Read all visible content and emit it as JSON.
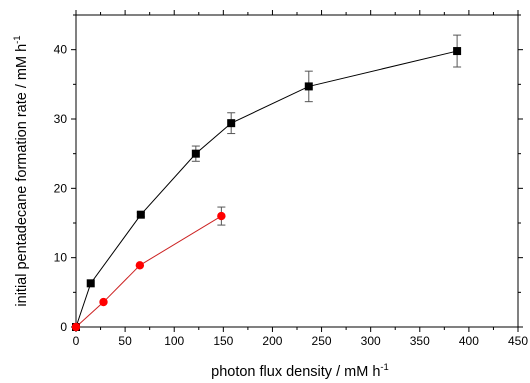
{
  "chart_data": {
    "type": "scatter",
    "xlabel": "photon flux density / mM h",
    "xlabel_sup": "-1",
    "ylabel": "initial pentadecane formation rate / mM h",
    "ylabel_sup": "-1",
    "xlim": [
      0,
      450
    ],
    "ylim": [
      0,
      45
    ],
    "xticks": [
      0,
      50,
      100,
      150,
      200,
      250,
      300,
      350,
      400,
      450
    ],
    "yticks": [
      0,
      10,
      20,
      30,
      40
    ],
    "grid": false,
    "series": [
      {
        "marker": "square",
        "color": "#000000",
        "points": [
          {
            "x": 0,
            "y": 0,
            "err": 0
          },
          {
            "x": 15,
            "y": 6.3,
            "err": 0
          },
          {
            "x": 66,
            "y": 16.2,
            "err": 0.3
          },
          {
            "x": 122,
            "y": 25.0,
            "err": 1.1
          },
          {
            "x": 158,
            "y": 29.4,
            "err": 1.5
          },
          {
            "x": 237,
            "y": 34.7,
            "err": 2.2
          },
          {
            "x": 388,
            "y": 39.8,
            "err": 2.3
          }
        ]
      },
      {
        "marker": "circle",
        "color": "#ff0000",
        "line_color": "#cc2222",
        "points": [
          {
            "x": 0,
            "y": 0,
            "err": 0
          },
          {
            "x": 28,
            "y": 3.6,
            "err": 0
          },
          {
            "x": 65,
            "y": 8.9,
            "err": 0
          },
          {
            "x": 148,
            "y": 16.0,
            "err": 1.3
          }
        ]
      }
    ]
  }
}
